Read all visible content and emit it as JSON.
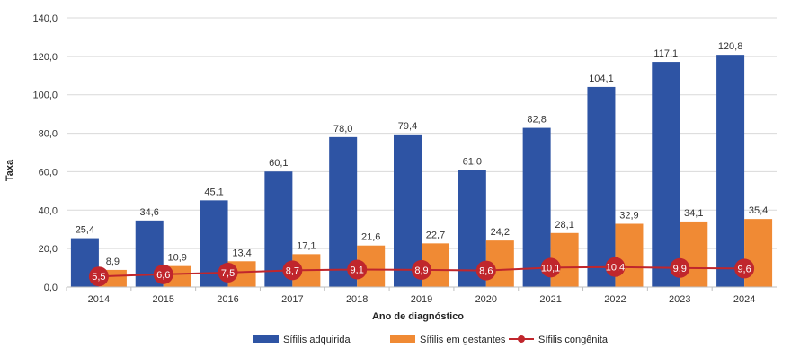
{
  "chart_data": {
    "type": "bar",
    "categories": [
      "2014",
      "2015",
      "2016",
      "2017",
      "2018",
      "2019",
      "2020",
      "2021",
      "2022",
      "2023",
      "2024"
    ],
    "series": [
      {
        "name": "Sífilis adquirida",
        "kind": "bar",
        "color": "#2E54A4",
        "values": [
          25.4,
          34.6,
          45.1,
          60.1,
          78.0,
          79.4,
          61.0,
          82.8,
          104.1,
          117.1,
          120.8
        ],
        "labels": [
          "25,4",
          "34,6",
          "45,1",
          "60,1",
          "78,0",
          "79,4",
          "61,0",
          "82,8",
          "104,1",
          "117,1",
          "120,8"
        ]
      },
      {
        "name": "Sífilis em gestantes",
        "kind": "bar",
        "color": "#F08A34",
        "values": [
          8.9,
          10.9,
          13.4,
          17.1,
          21.6,
          22.7,
          24.2,
          28.1,
          32.9,
          34.1,
          35.4
        ],
        "labels": [
          "8,9",
          "10,9",
          "13,4",
          "17,1",
          "21,6",
          "22,7",
          "24,2",
          "28,1",
          "32,9",
          "34,1",
          "35,4"
        ]
      },
      {
        "name": "Sífilis congênita",
        "kind": "line",
        "color": "#C0262C",
        "values": [
          5.5,
          6.6,
          7.5,
          8.7,
          9.1,
          8.9,
          8.6,
          10.1,
          10.4,
          9.9,
          9.6
        ],
        "labels": [
          "5,5",
          "6,6",
          "7,5",
          "8,7",
          "9,1",
          "8,9",
          "8,6",
          "10,1",
          "10,4",
          "9,9",
          "9,6"
        ]
      }
    ],
    "ylim": [
      0,
      140
    ],
    "yticks": [
      0,
      20,
      40,
      60,
      80,
      100,
      120,
      140
    ],
    "ytick_labels": [
      "0,0",
      "20,0",
      "40,0",
      "60,0",
      "80,0",
      "100,0",
      "120,0",
      "140,0"
    ],
    "xlabel": "Ano de diagnóstico",
    "ylabel": "Taxa",
    "legend_position": "bottom-center",
    "grid": "horizontal"
  }
}
